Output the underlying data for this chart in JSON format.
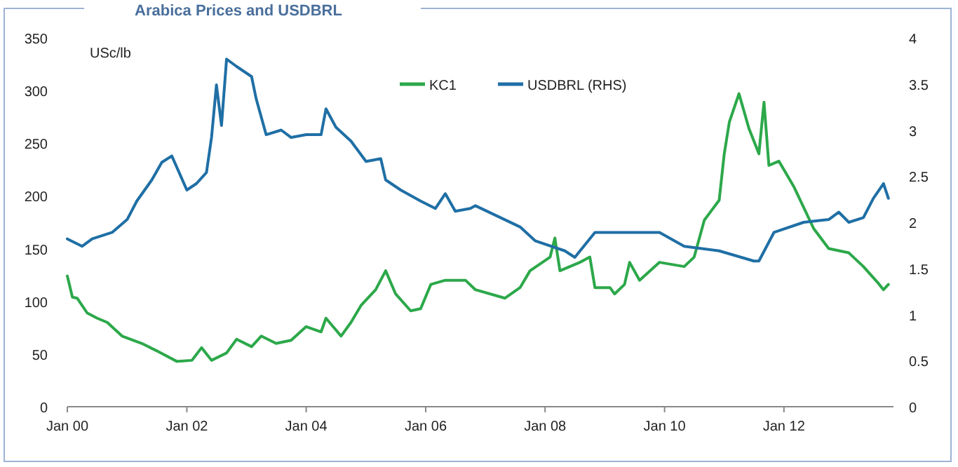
{
  "chart_data": {
    "type": "line",
    "title": "Arabica Prices and USDBRL",
    "ylabel": "USc/lb",
    "xlim": [
      "2000-01",
      "2013-11"
    ],
    "xticks": [
      {
        "value": "2000-01",
        "label": "Jan 00"
      },
      {
        "value": "2002-01",
        "label": "Jan 02"
      },
      {
        "value": "2004-01",
        "label": "Jan 04"
      },
      {
        "value": "2006-01",
        "label": "Jan 06"
      },
      {
        "value": "2008-01",
        "label": "Jan 08"
      },
      {
        "value": "2010-01",
        "label": "Jan 10"
      },
      {
        "value": "2012-01",
        "label": "Jan 12"
      }
    ],
    "ylim": [
      0,
      350
    ],
    "yticks": [
      0,
      50,
      100,
      150,
      200,
      250,
      300,
      350
    ],
    "y2lim": [
      0,
      4
    ],
    "y2ticks": [
      0,
      0.5,
      1,
      1.5,
      2,
      2.5,
      3,
      3.5,
      4
    ],
    "legend": "top",
    "grid": false,
    "marker": "none",
    "line_style": "solid",
    "series": [
      {
        "name": "KC1",
        "color": "#2ca84a",
        "x": [
          "2000-01",
          "2000-02",
          "2000-03",
          "2000-05",
          "2000-07",
          "2000-09",
          "2000-12",
          "2001-04",
          "2001-07",
          "2001-11",
          "2002-02",
          "2002-04",
          "2002-06",
          "2002-09",
          "2002-11",
          "2003-02",
          "2003-04",
          "2003-07",
          "2003-10",
          "2004-01",
          "2004-04",
          "2004-05",
          "2004-08",
          "2004-10",
          "2004-12",
          "2005-03",
          "2005-05",
          "2005-07",
          "2005-10",
          "2005-12",
          "2006-02",
          "2006-05",
          "2006-09",
          "2006-11",
          "2007-05",
          "2007-08",
          "2007-10",
          "2008-02",
          "2008-03",
          "2008-04",
          "2008-08",
          "2008-10",
          "2008-11",
          "2009-02",
          "2009-03",
          "2009-05",
          "2009-06",
          "2009-08",
          "2009-12",
          "2010-05",
          "2010-07",
          "2010-09",
          "2010-12",
          "2011-01",
          "2011-02",
          "2011-04",
          "2011-06",
          "2011-08",
          "2011-09",
          "2011-10",
          "2011-12",
          "2012-03",
          "2012-07",
          "2012-10",
          "2013-02",
          "2013-05",
          "2013-08",
          "2013-09",
          "2013-10"
        ],
        "values": [
          124,
          104,
          103,
          89,
          84,
          80,
          67,
          60,
          53,
          43,
          44,
          56,
          44,
          51,
          64,
          57,
          67,
          60,
          63,
          76,
          71,
          84,
          67,
          80,
          96,
          111,
          129,
          107,
          91,
          93,
          116,
          120,
          120,
          111,
          103,
          113,
          129,
          142,
          160,
          129,
          137,
          142,
          113,
          113,
          107,
          116,
          137,
          120,
          137,
          133,
          142,
          177,
          196,
          240,
          270,
          297,
          264,
          240,
          289,
          229,
          233,
          209,
          169,
          150,
          146,
          133,
          117,
          111,
          116
        ]
      },
      {
        "name": "USDBRL (RHS)",
        "color": "#1f6fa5",
        "axis": "y2",
        "x": [
          "2000-01",
          "2000-04",
          "2000-06",
          "2000-10",
          "2001-01",
          "2001-03",
          "2001-06",
          "2001-08",
          "2001-10",
          "2002-01",
          "2002-03",
          "2002-05",
          "2002-06",
          "2002-07",
          "2002-08",
          "2002-09",
          "2002-11",
          "2003-02",
          "2003-03",
          "2003-05",
          "2003-08",
          "2003-10",
          "2004-01",
          "2004-04",
          "2004-05",
          "2004-07",
          "2004-10",
          "2005-01",
          "2005-04",
          "2005-05",
          "2005-08",
          "2005-12",
          "2006-03",
          "2006-05",
          "2006-07",
          "2006-10",
          "2006-11",
          "2007-08",
          "2007-11",
          "2008-05",
          "2008-07",
          "2008-11",
          "2009-12",
          "2010-05",
          "2010-12",
          "2011-07",
          "2011-08",
          "2011-11",
          "2012-05",
          "2012-10",
          "2012-12",
          "2013-02",
          "2013-05",
          "2013-07",
          "2013-09",
          "2013-10"
        ],
        "values": [
          1.82,
          1.74,
          1.82,
          1.89,
          2.03,
          2.23,
          2.46,
          2.65,
          2.72,
          2.35,
          2.42,
          2.54,
          2.92,
          3.49,
          3.05,
          3.77,
          3.69,
          3.58,
          3.34,
          2.95,
          3.0,
          2.92,
          2.95,
          2.95,
          3.23,
          3.03,
          2.88,
          2.66,
          2.69,
          2.46,
          2.35,
          2.23,
          2.15,
          2.31,
          2.12,
          2.15,
          2.18,
          1.95,
          1.8,
          1.69,
          1.62,
          1.89,
          1.89,
          1.74,
          1.69,
          1.58,
          1.58,
          1.89,
          2.0,
          2.03,
          2.11,
          2.0,
          2.05,
          2.26,
          2.42,
          2.26
        ]
      }
    ]
  }
}
